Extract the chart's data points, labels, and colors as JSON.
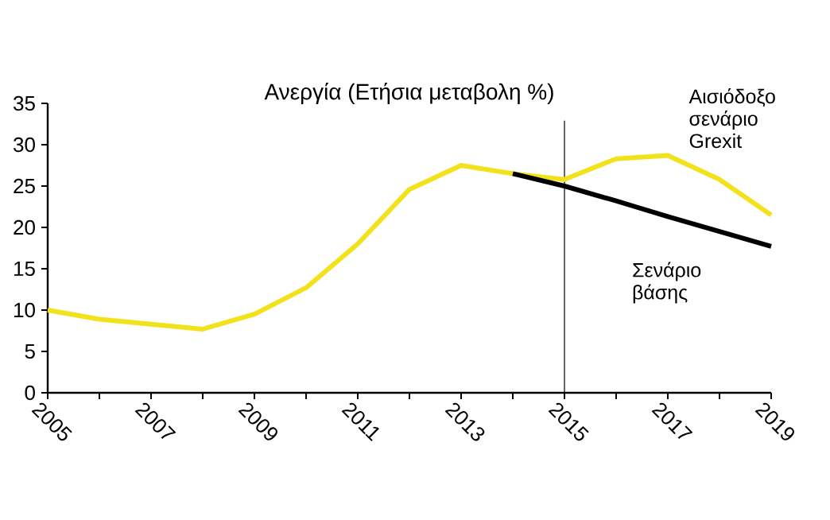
{
  "chart_data": {
    "type": "line",
    "title": "Ανεργία (Ετήσια μεταβολη %)",
    "xlim": [
      2005,
      2019
    ],
    "ylim": [
      0,
      35
    ],
    "yticks": [
      0,
      5,
      10,
      15,
      20,
      25,
      30,
      35
    ],
    "xticks": [
      2005,
      {
        "value": 2006,
        "label": null
      },
      2007,
      {
        "value": 2008,
        "label": null
      },
      2009,
      {
        "value": 2010,
        "label": null
      },
      2011,
      {
        "value": 2012,
        "label": null
      },
      2013,
      {
        "value": 2014,
        "label": null
      },
      2015,
      {
        "value": 2016,
        "label": null
      },
      2017,
      {
        "value": 2018,
        "label": null
      },
      2019
    ],
    "grid": false,
    "legend": false,
    "marker": "none",
    "line_style": "solid",
    "ref_lines": [
      {
        "axis": "x",
        "value": 2015,
        "color": "#000000"
      }
    ],
    "series": [
      {
        "name": "Αισιόδοξο σενάριο Grexit",
        "color": "#f2e21c",
        "x": [
          2005,
          2006,
          2007,
          2008,
          2009,
          2010,
          2011,
          2012,
          2013,
          2014,
          2015,
          2016,
          2017,
          2018,
          2019
        ],
        "values": [
          10,
          8.9,
          8.3,
          7.7,
          9.5,
          12.7,
          18,
          24.6,
          27.5,
          26.5,
          25.8,
          28.3,
          28.7,
          25.8,
          21.5
        ]
      },
      {
        "name": "Σενάριο βάσης",
        "color": "#000000",
        "x": [
          2014,
          2015,
          2016,
          2017,
          2018,
          2019
        ],
        "values": [
          26.5,
          25,
          23.2,
          21.3,
          19.5,
          17.7
        ]
      }
    ]
  }
}
